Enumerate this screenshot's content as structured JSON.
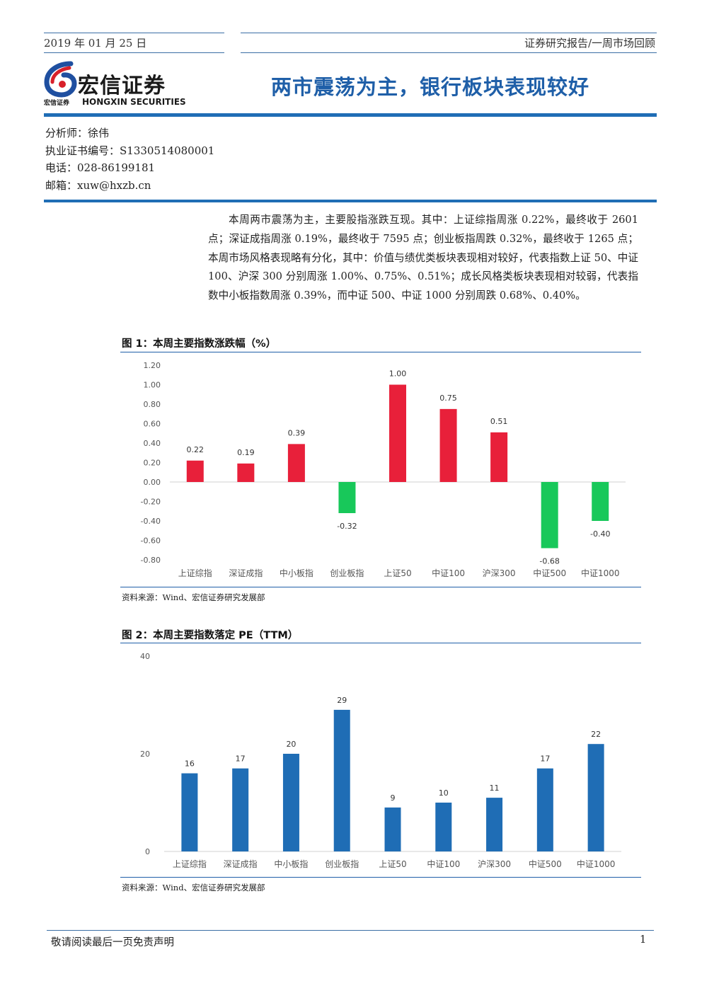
{
  "header": {
    "date": "2019 年 01 月 25 日",
    "category": "证券研究报告/一周市场回顾"
  },
  "logo": {
    "name_cn": "宏信证券",
    "name_en": "HONGXIN SECURITIES",
    "small_cn": "宏信证券"
  },
  "title": "两市震荡为主，银行板块表现较好",
  "analyst": {
    "name_line": "分析师：徐伟",
    "cert_line": "执业证书编号：S1330514080001",
    "phone_line": "电话：028-86199181",
    "email_line": "邮箱：xuw@hxzb.cn"
  },
  "body_paragraph": "本周两市震荡为主，主要股指涨跌互现。其中：上证综指周涨 0.22%，最终收于 2601 点；深证成指周涨 0.19%，最终收于 7595 点；创业板指周跌 0.32%，最终收于 1265 点；本周市场风格表现略有分化，其中：价值与绩优类板块表现相对较好，代表指数上证 50、中证 100、沪深 300 分别周涨 1.00%、0.75%、0.51%；成长风格类板块表现相对较弱，代表指数中小板指数周涨 0.39%，而中证 500、中证 1000 分别周跌 0.68%、0.40%。",
  "figure1": {
    "title": "图 1：本周主要指数涨跌幅（%）",
    "source": "资料来源：Wind、宏信证券研究发展部"
  },
  "figure2": {
    "title": "图 2：本周主要指数落定 PE（TTM）",
    "source": "资料来源：Wind、宏信证券研究发展部"
  },
  "footer": {
    "disclaimer": "敬请阅读最后一页免责声明",
    "page": "1"
  },
  "colors": {
    "positive": "#e8203a",
    "negative": "#18c85a",
    "pe_bar": "#1f6db5",
    "accent": "#1f5fa8"
  },
  "chart_data": [
    {
      "type": "bar",
      "categories": [
        "上证综指",
        "深证成指",
        "中小板指",
        "创业板指",
        "上证50",
        "中证100",
        "沪深300",
        "中证500",
        "中证1000"
      ],
      "values": [
        0.22,
        0.19,
        0.39,
        -0.32,
        1.0,
        0.75,
        0.51,
        -0.68,
        -0.4
      ],
      "data_labels": [
        "0.22",
        "0.19",
        "0.39",
        "-0.32",
        "1.00",
        "0.75",
        "0.51",
        "-0.68",
        "-0.40"
      ],
      "yticks": [
        "1.20",
        "1.00",
        "0.80",
        "0.60",
        "0.40",
        "0.20",
        "0.00",
        "-0.20",
        "-0.40",
        "-0.60",
        "-0.80"
      ],
      "ylim": [
        -0.8,
        1.2
      ],
      "title": "",
      "xlabel": "",
      "ylabel": "",
      "grid": false
    },
    {
      "type": "bar",
      "categories": [
        "上证综指",
        "深证成指",
        "中小板指",
        "创业板指",
        "上证50",
        "中证100",
        "沪深300",
        "中证500",
        "中证1000"
      ],
      "values": [
        16,
        17,
        20,
        29,
        9,
        10,
        11,
        17,
        22
      ],
      "data_labels": [
        "16",
        "17",
        "20",
        "29",
        "9",
        "10",
        "11",
        "17",
        "22"
      ],
      "yticks": [
        "40",
        "20",
        "0"
      ],
      "ylim": [
        0,
        40
      ],
      "title": "",
      "xlabel": "",
      "ylabel": "",
      "grid": false
    }
  ]
}
